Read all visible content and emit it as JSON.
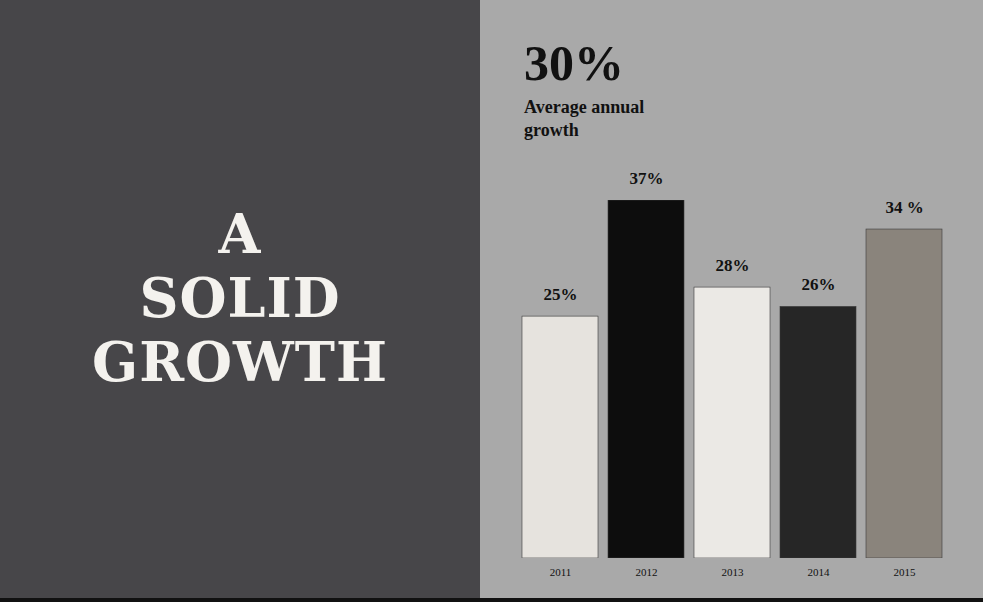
{
  "chart_data": {
    "type": "bar",
    "title": "A SOLID GROWTH",
    "categories": [
      "2011",
      "2012",
      "2013",
      "2014",
      "2015"
    ],
    "values": [
      25,
      37,
      28,
      26,
      34
    ],
    "value_labels": [
      "25%",
      "37%",
      "28%",
      "26%",
      "34 %"
    ],
    "colors": [
      "#e6e3de",
      "#0d0d0d",
      "#ebe9e5",
      "#262626",
      "#8a847c"
    ],
    "annotations": [
      {
        "text": "30%"
      },
      {
        "text": "Average annual growth"
      }
    ],
    "data_labels": true,
    "tick_labels": "x"
  }
}
